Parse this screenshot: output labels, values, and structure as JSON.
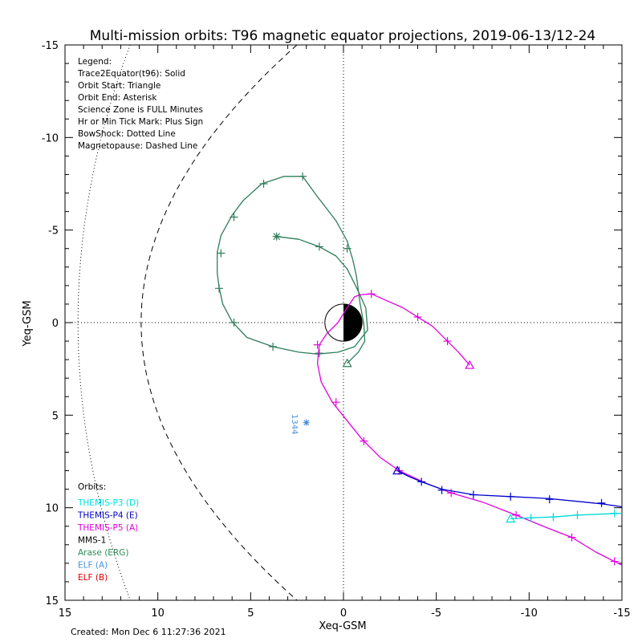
{
  "chart_data": {
    "type": "line",
    "title": "Multi-mission orbits: T96 magnetic equator projections, 2019-06-13/12-24",
    "xlabel": "Xeq-GSM",
    "ylabel": "Yeq-GSM",
    "xlim": [
      15,
      -15
    ],
    "ylim": [
      -15,
      15
    ],
    "x_ticks": [
      "15",
      "10",
      "5",
      "0",
      "-5",
      "-10",
      "-15"
    ],
    "y_ticks": [
      "-15",
      "-10",
      "-5",
      "0",
      "5",
      "10",
      "15"
    ],
    "created": "Created: Mon Dec  6 11:27:36 2021",
    "legend_lines": [
      "Legend:",
      "Trace2Equator(t96): Solid",
      "Orbit Start: Triangle",
      "Orbit End: Asterisk",
      "Science Zone is FULL Minutes",
      "Hr or Min Tick Mark: Plus Sign",
      "BowShock: Dotted Line",
      "Magnetopause: Dashed Line"
    ],
    "orbits_title": "Orbits:",
    "orbits_legend": [
      {
        "label": "THEMIS-P3 (D)",
        "color": "#00e0e0"
      },
      {
        "label": "THEMIS-P4 (E)",
        "color": "#0000cc"
      },
      {
        "label": "THEMIS-P5 (A)",
        "color": "#e000e0"
      },
      {
        "label": "MMS-1",
        "color": "#000000"
      },
      {
        "label": "Arase (ERG)",
        "color": "#2e8b57"
      },
      {
        "label": "ELF (A)",
        "color": "#4a8fd8"
      },
      {
        "label": "ELF (B)",
        "color": "#dd0000"
      }
    ],
    "elf_annotation": "1344",
    "elf_point": [
      2.0,
      5.4
    ],
    "series": [
      {
        "name": "Arase (ERG)",
        "color": "#2e7d5a",
        "points": [
          [
            -0.2,
            2.2
          ],
          [
            -0.8,
            1.6
          ],
          [
            -1.15,
            1.0
          ],
          [
            -1.1,
            0.1
          ],
          [
            -0.9,
            -1.0
          ],
          [
            -0.7,
            -2.5
          ],
          [
            -0.5,
            -3.4
          ],
          [
            -0.2,
            -4.4
          ],
          [
            0.4,
            -5.5
          ],
          [
            1.4,
            -6.8
          ],
          [
            2.2,
            -7.9
          ],
          [
            3.2,
            -7.9
          ],
          [
            4.4,
            -7.5
          ],
          [
            5.4,
            -6.6
          ],
          [
            6.0,
            -5.8
          ],
          [
            6.6,
            -4.7
          ],
          [
            6.8,
            -3.8
          ],
          [
            6.8,
            -2.7
          ],
          [
            6.7,
            -1.9
          ],
          [
            6.5,
            -1.0
          ],
          [
            6.0,
            -0.05
          ],
          [
            5.2,
            0.8
          ],
          [
            3.8,
            1.3
          ],
          [
            2.4,
            1.6
          ],
          [
            1.4,
            1.7
          ],
          [
            0.3,
            1.6
          ],
          [
            -0.6,
            1.3
          ],
          [
            -1.3,
            0.4
          ],
          [
            -1.2,
            -0.8
          ],
          [
            -0.7,
            -1.9
          ],
          [
            -0.2,
            -2.9
          ],
          [
            0.4,
            -3.6
          ],
          [
            1.3,
            -4.1
          ],
          [
            2.4,
            -4.5
          ],
          [
            3.6,
            -4.65
          ]
        ],
        "ticks": [
          [
            -0.2,
            -4.0
          ],
          [
            1.3,
            -4.1
          ],
          [
            2.2,
            -7.9
          ],
          [
            4.3,
            -7.5
          ],
          [
            5.9,
            -5.7
          ],
          [
            6.6,
            -3.75
          ],
          [
            6.7,
            -1.85
          ],
          [
            5.9,
            0.0
          ],
          [
            3.8,
            1.3
          ],
          [
            1.3,
            1.65
          ]
        ],
        "start": [
          -0.2,
          2.2
        ],
        "end": [
          3.6,
          -4.65
        ]
      },
      {
        "name": "THEMIS-P5 (A)",
        "color": "#e000e0",
        "points": [
          [
            -6.8,
            2.3
          ],
          [
            -6.2,
            1.6
          ],
          [
            -5.6,
            1.0
          ],
          [
            -4.8,
            0.2
          ],
          [
            -4.0,
            -0.3
          ],
          [
            -3.2,
            -0.8
          ],
          [
            -2.3,
            -1.2
          ],
          [
            -1.5,
            -1.55
          ],
          [
            -0.9,
            -1.5
          ],
          [
            -0.6,
            -1.4
          ],
          [
            -0.2,
            -0.8
          ],
          [
            0.3,
            0.0
          ],
          [
            0.9,
            0.6
          ],
          [
            1.3,
            1.2
          ],
          [
            1.4,
            2.2
          ],
          [
            1.2,
            3.2
          ],
          [
            0.6,
            4.3
          ],
          [
            -0.2,
            5.3
          ],
          [
            -1.0,
            6.3
          ],
          [
            -2.0,
            7.3
          ],
          [
            -3.0,
            8.0
          ],
          [
            -4.5,
            8.7
          ],
          [
            -5.8,
            9.2
          ],
          [
            -7.5,
            9.7
          ],
          [
            -9.3,
            10.4
          ],
          [
            -11.0,
            11.1
          ],
          [
            -12.3,
            11.6
          ],
          [
            -13.6,
            12.4
          ],
          [
            -14.6,
            12.9
          ],
          [
            -15.0,
            13.1
          ]
        ],
        "ticks": [
          [
            -5.6,
            1.0
          ],
          [
            -4.0,
            -0.3
          ],
          [
            -1.5,
            -1.55
          ],
          [
            1.4,
            1.2
          ],
          [
            0.4,
            4.3
          ],
          [
            -1.1,
            6.4
          ],
          [
            -3.0,
            8.0
          ],
          [
            -5.8,
            9.2
          ],
          [
            -9.3,
            10.4
          ],
          [
            -12.3,
            11.6
          ],
          [
            -14.6,
            12.9
          ]
        ],
        "start": [
          -6.8,
          2.3
        ],
        "end": null
      },
      {
        "name": "THEMIS-P4 (E)",
        "color": "#0000cc",
        "points": [
          [
            -2.9,
            8.0
          ],
          [
            -3.5,
            8.3
          ],
          [
            -4.2,
            8.6
          ],
          [
            -5.3,
            9.0
          ],
          [
            -7.0,
            9.3
          ],
          [
            -9.0,
            9.4
          ],
          [
            -11.0,
            9.5
          ],
          [
            -13.0,
            9.7
          ],
          [
            -14.0,
            9.8
          ],
          [
            -15.0,
            9.95
          ]
        ],
        "ticks": [
          [
            -4.2,
            8.6
          ],
          [
            -5.3,
            9.05
          ],
          [
            -7.0,
            9.3
          ],
          [
            -9.0,
            9.4
          ],
          [
            -11.1,
            9.55
          ],
          [
            -13.9,
            9.75
          ]
        ],
        "start": [
          -2.9,
          8.0
        ],
        "end": null
      },
      {
        "name": "THEMIS-P3 (D)",
        "color": "#00d8d8",
        "points": [
          [
            -9.0,
            10.6
          ],
          [
            -10.0,
            10.55
          ],
          [
            -11.3,
            10.5
          ],
          [
            -12.6,
            10.4
          ],
          [
            -13.8,
            10.35
          ],
          [
            -15.0,
            10.3
          ]
        ],
        "ticks": [
          [
            -10.1,
            10.55
          ],
          [
            -11.3,
            10.5
          ],
          [
            -12.6,
            10.4
          ],
          [
            -14.6,
            10.3
          ]
        ],
        "start": [
          -9.0,
          10.6
        ],
        "end": null
      }
    ]
  }
}
